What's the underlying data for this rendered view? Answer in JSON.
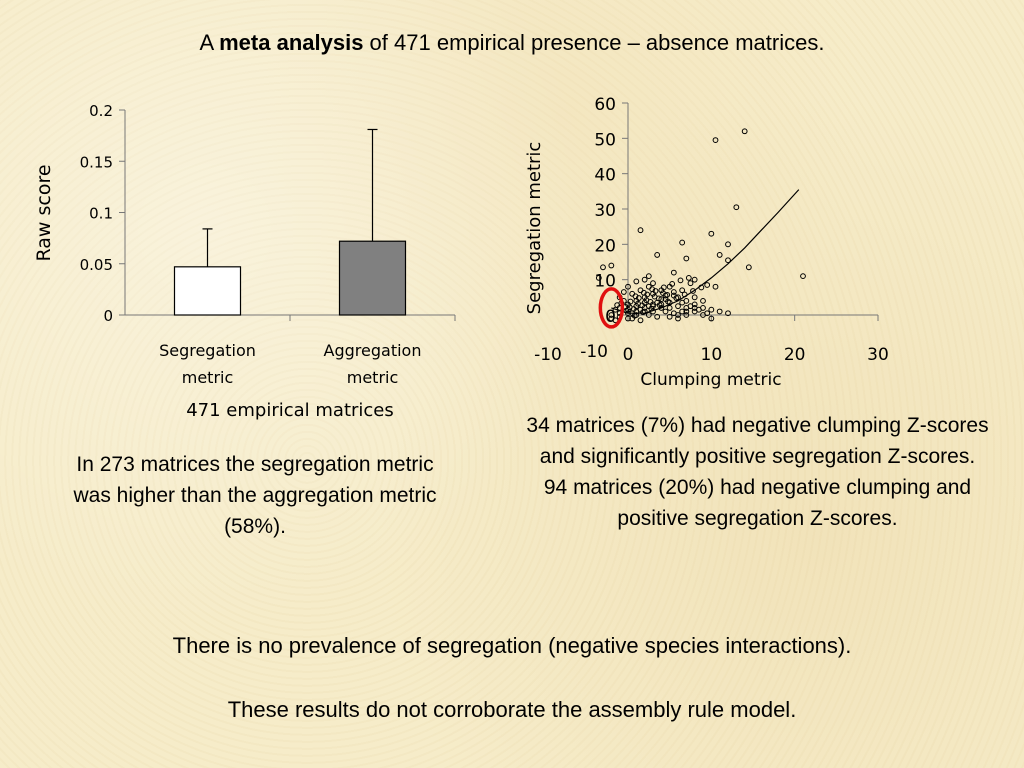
{
  "title": {
    "prefix": "A ",
    "bold": "meta analysis",
    "suffix": " of 471 empirical presence – absence matrices."
  },
  "bar_caption": "471 empirical matrices",
  "left_note": "In 273 matrices the segregation metric was higher than the aggregation metric (58%).",
  "right_note": {
    "line1": "34 matrices (7%) had negative clumping Z-scores and significantly positive segregation Z-scores.",
    "line2": "94 matrices (20%) had negative clumping and positive segregation Z-scores."
  },
  "bottom_1": "There is no prevalence of segregation (negative species interactions).",
  "bottom_2": "These results do not corroborate the assembly rule model.",
  "colors": {
    "background": "#f6ecc9",
    "bar_segregation": "#ffffff",
    "bar_aggregation": "#808080",
    "highlight_ellipse": "#e01010"
  },
  "chart_data": [
    {
      "type": "bar",
      "categories": [
        "Segregation metric",
        "Aggregation metric"
      ],
      "values": [
        0.047,
        0.072
      ],
      "error_upper": [
        0.084,
        0.181
      ],
      "ylabel": "Raw score",
      "ylim": [
        0,
        0.2
      ],
      "yticks": [
        "0",
        "0.05",
        "0.1",
        "0.15",
        "0.2"
      ],
      "bar_colors": [
        "#ffffff",
        "#808080"
      ],
      "grid": false
    },
    {
      "type": "scatter",
      "xlabel": "Clumping metric",
      "ylabel": "Segregation metric",
      "xlim": [
        -10,
        30
      ],
      "ylim": [
        -10,
        60
      ],
      "xticks": [
        "-10",
        "0",
        "10",
        "20",
        "30"
      ],
      "yticks": [
        "-10",
        "0",
        "10",
        "20",
        "30",
        "40",
        "50",
        "60"
      ],
      "grid": false,
      "points": [
        [
          14,
          52
        ],
        [
          10.5,
          49.5
        ],
        [
          13,
          30.5
        ],
        [
          10,
          23
        ],
        [
          12,
          20
        ],
        [
          6.5,
          20.5
        ],
        [
          3.5,
          17
        ],
        [
          7,
          16
        ],
        [
          12,
          15.5
        ],
        [
          14.5,
          13.5
        ],
        [
          21,
          11
        ],
        [
          1.5,
          24
        ],
        [
          -3,
          13.5
        ],
        [
          -2,
          14
        ],
        [
          -3.5,
          10.5
        ],
        [
          11,
          17
        ],
        [
          5.5,
          12
        ],
        [
          2.5,
          11
        ],
        [
          8,
          10
        ],
        [
          9.5,
          8.5
        ],
        [
          10.5,
          8
        ],
        [
          7.5,
          9
        ],
        [
          5,
          8
        ],
        [
          4,
          7
        ],
        [
          3,
          6
        ],
        [
          2,
          5
        ],
        [
          1,
          4
        ],
        [
          0,
          3
        ],
        [
          -1,
          2
        ],
        [
          6,
          5
        ],
        [
          7,
          4
        ],
        [
          8,
          3
        ],
        [
          9,
          2
        ],
        [
          10,
          1.5
        ],
        [
          11,
          1
        ],
        [
          12,
          0.5
        ],
        [
          6.5,
          1
        ],
        [
          5,
          2
        ],
        [
          4,
          3
        ],
        [
          3,
          1
        ],
        [
          2,
          2
        ],
        [
          1,
          1
        ],
        [
          0,
          0.5
        ],
        [
          -1,
          -0.5
        ],
        [
          -2,
          0
        ],
        [
          -1.5,
          1.5
        ],
        [
          0.5,
          -1
        ],
        [
          1.5,
          -1.5
        ],
        [
          2.5,
          0
        ],
        [
          3.5,
          -0.5
        ],
        [
          4.5,
          1
        ],
        [
          5.5,
          0.5
        ],
        [
          6,
          -1
        ],
        [
          7,
          0
        ],
        [
          8,
          1
        ],
        [
          9,
          0
        ],
        [
          10,
          -1
        ],
        [
          3,
          2.5
        ],
        [
          4,
          4.5
        ],
        [
          5,
          3.5
        ],
        [
          6,
          2.5
        ],
        [
          7,
          2
        ],
        [
          8,
          5
        ],
        [
          9,
          4
        ],
        [
          2,
          3.5
        ],
        [
          1,
          2.5
        ],
        [
          0,
          1.5
        ],
        [
          -0.5,
          4
        ],
        [
          -1,
          5
        ],
        [
          0.5,
          6
        ],
        [
          1.5,
          7
        ],
        [
          2.5,
          8
        ],
        [
          4.5,
          5.5
        ],
        [
          5.5,
          6.5
        ],
        [
          6.5,
          7
        ],
        [
          3,
          9
        ],
        [
          0,
          8
        ],
        [
          -0.5,
          6.5
        ],
        [
          1,
          9.5
        ],
        [
          2,
          10
        ],
        [
          4,
          2
        ],
        [
          3,
          3
        ],
        [
          2,
          1
        ],
        [
          1,
          0
        ],
        [
          0,
          -1
        ],
        [
          -1,
          0.5
        ],
        [
          -2,
          -1
        ],
        [
          -1.5,
          -1.5
        ],
        [
          0.5,
          0.5
        ],
        [
          1.5,
          1.5
        ],
        [
          2.5,
          2.5
        ],
        [
          3.5,
          3.5
        ],
        [
          4.5,
          4.5
        ],
        [
          5.5,
          5.5
        ],
        [
          0.2,
          2.2
        ],
        [
          1.2,
          3.2
        ],
        [
          2.2,
          4.2
        ],
        [
          3.2,
          5.2
        ],
        [
          4.2,
          6.2
        ],
        [
          0.8,
          -0.2
        ],
        [
          1.8,
          0.8
        ],
        [
          2.8,
          1.8
        ],
        [
          3.8,
          2.8
        ],
        [
          4.8,
          3.8
        ],
        [
          5.8,
          4.8
        ],
        [
          6.8,
          5.8
        ],
        [
          7.8,
          6.8
        ],
        [
          8.8,
          7.8
        ],
        [
          -0.2,
          1.2
        ],
        [
          0.3,
          3.8
        ],
        [
          1.3,
          4.8
        ],
        [
          2.3,
          5.8
        ],
        [
          3.3,
          6.8
        ],
        [
          4.3,
          7.8
        ],
        [
          5.3,
          8.8
        ],
        [
          6.3,
          9.8
        ],
        [
          7.3,
          10.5
        ],
        [
          0.7,
          1.7
        ],
        [
          1.7,
          2.7
        ],
        [
          2.7,
          3.7
        ],
        [
          3.7,
          4.7
        ],
        [
          4.7,
          5.7
        ],
        [
          -0.8,
          3.3
        ],
        [
          -1.3,
          2.8
        ],
        [
          -0.3,
          2.3
        ],
        [
          0.9,
          5.3
        ],
        [
          1.9,
          6.3
        ],
        [
          2.9,
          7.3
        ],
        [
          6.5,
          3.5
        ],
        [
          7.5,
          2.5
        ],
        [
          8.5,
          1.5
        ],
        [
          9.5,
          0.5
        ],
        [
          5,
          -0.5
        ],
        [
          6,
          0
        ],
        [
          7,
          1
        ],
        [
          8,
          2
        ]
      ],
      "fit_curve": [
        [
          -2,
          2
        ],
        [
          0,
          0.5
        ],
        [
          2,
          0.5
        ],
        [
          4,
          2
        ],
        [
          6,
          4
        ],
        [
          8,
          7
        ],
        [
          10,
          10.5
        ],
        [
          12,
          14.5
        ],
        [
          14,
          19
        ],
        [
          16,
          24
        ],
        [
          18,
          29
        ],
        [
          20.5,
          35.5
        ]
      ],
      "highlight": {
        "shape": "ellipse",
        "x": -2,
        "y": 2,
        "color": "#e01010"
      }
    }
  ]
}
